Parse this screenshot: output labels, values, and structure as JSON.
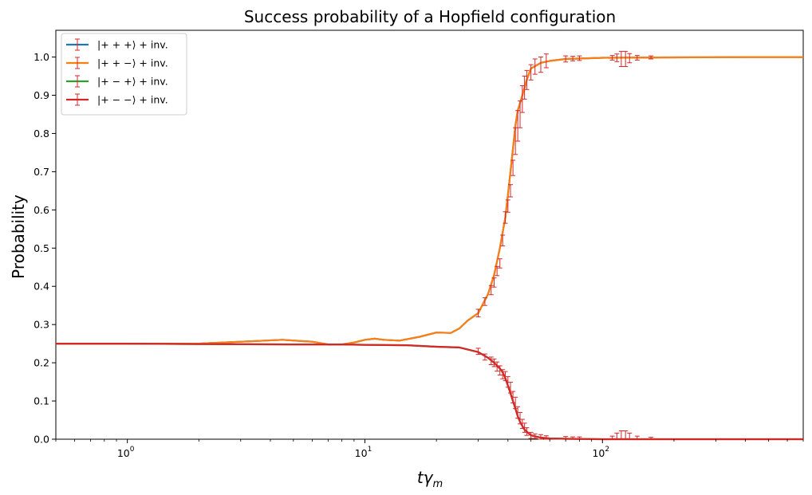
{
  "chart_data": {
    "type": "line",
    "title": "Success probability of a Hopfield configuration",
    "xlabel_base": "tγ",
    "xlabel_sub": "m",
    "ylabel": "Probability",
    "xscale": "log",
    "xlim": [
      0.5,
      700
    ],
    "ylim": [
      0.0,
      1.07
    ],
    "x_ticks": [
      {
        "value": 1,
        "base": "10",
        "exp": "0"
      },
      {
        "value": 10,
        "base": "10",
        "exp": "1"
      },
      {
        "value": 100,
        "base": "10",
        "exp": "2"
      }
    ],
    "y_ticks": [
      "0.0",
      "0.1",
      "0.2",
      "0.3",
      "0.4",
      "0.5",
      "0.6",
      "0.7",
      "0.8",
      "0.9",
      "1.0"
    ],
    "grid": false,
    "legend_position": "upper-left",
    "errorbar_color": "#d62728",
    "series": [
      {
        "name": "|+ + +⟩ + inv.",
        "color": "#1f77b4",
        "x": [
          0.5,
          1,
          2,
          3,
          4.5,
          6,
          7,
          8,
          9,
          10,
          11,
          12,
          14,
          17,
          20,
          23,
          25,
          27,
          30,
          33,
          35,
          37,
          39,
          40,
          41,
          42,
          43,
          44,
          46,
          48,
          50,
          55,
          60,
          70,
          100,
          200,
          400,
          700
        ],
        "y": [
          0.25,
          0.25,
          0.25,
          0.255,
          0.26,
          0.255,
          0.248,
          0.248,
          0.253,
          0.26,
          0.263,
          0.26,
          0.258,
          0.268,
          0.279,
          0.278,
          0.29,
          0.31,
          0.33,
          0.38,
          0.43,
          0.5,
          0.58,
          0.64,
          0.7,
          0.76,
          0.82,
          0.86,
          0.9,
          0.94,
          0.97,
          0.985,
          0.99,
          0.995,
          0.998,
          0.999,
          1.0,
          1.0
        ]
      },
      {
        "name": "|+ + −⟩ + inv.",
        "color": "#ff7f0e",
        "x": [
          0.5,
          1,
          2,
          3,
          4.5,
          6,
          7,
          8,
          9,
          10,
          11,
          12,
          14,
          17,
          20,
          23,
          25,
          27,
          30,
          33,
          35,
          37,
          39,
          40,
          41,
          42,
          43,
          44,
          46,
          48,
          50,
          55,
          60,
          70,
          100,
          200,
          400,
          700
        ],
        "y": [
          0.25,
          0.25,
          0.25,
          0.255,
          0.26,
          0.255,
          0.248,
          0.248,
          0.253,
          0.26,
          0.263,
          0.26,
          0.258,
          0.268,
          0.279,
          0.278,
          0.29,
          0.31,
          0.33,
          0.38,
          0.43,
          0.5,
          0.58,
          0.64,
          0.7,
          0.76,
          0.82,
          0.86,
          0.9,
          0.94,
          0.97,
          0.985,
          0.99,
          0.995,
          0.998,
          0.999,
          1.0,
          1.0
        ]
      },
      {
        "name": "|+ − +⟩ + inv.",
        "color": "#2ca02c",
        "x": [
          0.5,
          1,
          2,
          5,
          8,
          10,
          15,
          20,
          25,
          30,
          33,
          35,
          37,
          38,
          39,
          40,
          41,
          42,
          43,
          44,
          45,
          47,
          50,
          55,
          60,
          70,
          100,
          200,
          700
        ],
        "y": [
          0.25,
          0.25,
          0.249,
          0.248,
          0.248,
          0.247,
          0.246,
          0.242,
          0.24,
          0.228,
          0.213,
          0.2,
          0.185,
          0.175,
          0.16,
          0.14,
          0.12,
          0.1,
          0.08,
          0.06,
          0.045,
          0.025,
          0.01,
          0.004,
          0.002,
          0.001,
          0.0,
          0.0,
          0.0
        ]
      },
      {
        "name": "|+ − −⟩ + inv.",
        "color": "#d62728",
        "x": [
          0.5,
          1,
          2,
          5,
          8,
          10,
          15,
          20,
          25,
          30,
          33,
          35,
          37,
          38,
          39,
          40,
          41,
          42,
          43,
          44,
          45,
          47,
          50,
          55,
          60,
          70,
          100,
          200,
          700
        ],
        "y": [
          0.25,
          0.25,
          0.249,
          0.248,
          0.248,
          0.247,
          0.246,
          0.242,
          0.24,
          0.228,
          0.213,
          0.2,
          0.185,
          0.175,
          0.16,
          0.14,
          0.12,
          0.1,
          0.08,
          0.06,
          0.045,
          0.025,
          0.01,
          0.004,
          0.002,
          0.001,
          0.0,
          0.0,
          0.0
        ]
      }
    ],
    "errorbars": {
      "upper": {
        "x": [
          30,
          32,
          34,
          35,
          36,
          37,
          38,
          39,
          40,
          41,
          42,
          43,
          44,
          45,
          46,
          47,
          48,
          50,
          52,
          55,
          58,
          70,
          75,
          80,
          110,
          115,
          120,
          125,
          130,
          140,
          160
        ],
        "y": [
          0.33,
          0.36,
          0.39,
          0.41,
          0.44,
          0.46,
          0.52,
          0.58,
          0.61,
          0.65,
          0.71,
          0.78,
          0.82,
          0.85,
          0.89,
          0.92,
          0.94,
          0.96,
          0.975,
          0.98,
          0.99,
          0.995,
          0.996,
          0.997,
          0.998,
          0.998,
          0.995,
          0.995,
          0.997,
          0.998,
          0.999
        ],
        "err": [
          0.01,
          0.01,
          0.012,
          0.012,
          0.012,
          0.012,
          0.014,
          0.015,
          0.016,
          0.016,
          0.02,
          0.035,
          0.04,
          0.035,
          0.035,
          0.03,
          0.025,
          0.02,
          0.02,
          0.02,
          0.018,
          0.008,
          0.006,
          0.006,
          0.006,
          0.01,
          0.02,
          0.02,
          0.012,
          0.006,
          0.004
        ]
      },
      "lower": {
        "x": [
          30,
          32,
          34,
          35,
          36,
          37,
          38,
          39,
          40,
          41,
          42,
          43,
          44,
          45,
          46,
          47,
          48,
          50,
          52,
          55,
          58,
          70,
          75,
          80,
          110,
          115,
          120,
          125,
          130,
          140,
          160
        ],
        "y": [
          0.23,
          0.215,
          0.205,
          0.2,
          0.19,
          0.18,
          0.17,
          0.165,
          0.15,
          0.135,
          0.11,
          0.095,
          0.07,
          0.055,
          0.04,
          0.03,
          0.02,
          0.01,
          0.008,
          0.006,
          0.004,
          0.003,
          0.002,
          0.002,
          0.004,
          0.008,
          0.01,
          0.01,
          0.008,
          0.004,
          0.002
        ],
        "err": [
          0.008,
          0.008,
          0.01,
          0.01,
          0.012,
          0.012,
          0.012,
          0.012,
          0.014,
          0.014,
          0.015,
          0.015,
          0.015,
          0.015,
          0.012,
          0.012,
          0.01,
          0.008,
          0.006,
          0.006,
          0.005,
          0.004,
          0.004,
          0.004,
          0.004,
          0.008,
          0.012,
          0.012,
          0.008,
          0.004,
          0.003
        ]
      }
    }
  }
}
